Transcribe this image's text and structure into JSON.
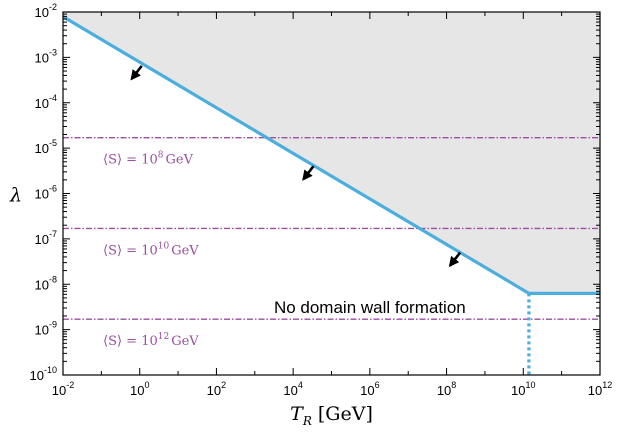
{
  "chart_data": {
    "type": "line",
    "xscale": "log",
    "yscale": "log",
    "xlim": [
      0.01,
      1000000000000.0
    ],
    "ylim": [
      1e-10,
      0.01
    ],
    "xlabel": {
      "main": "T",
      "sub": "R",
      "tail": " [GeV]"
    },
    "ylabel": "λ",
    "x_ticks": [
      {
        "base": "10",
        "exp": "-2",
        "value": 0.01
      },
      {
        "base": "10",
        "exp": "0",
        "value": 1
      },
      {
        "base": "10",
        "exp": "2",
        "value": 100
      },
      {
        "base": "10",
        "exp": "4",
        "value": 10000
      },
      {
        "base": "10",
        "exp": "6",
        "value": 1000000
      },
      {
        "base": "10",
        "exp": "8",
        "value": 100000000
      },
      {
        "base": "10",
        "exp": "10",
        "value": 10000000000
      },
      {
        "base": "10",
        "exp": "12",
        "value": 1000000000000
      }
    ],
    "y_ticks": [
      {
        "base": "10",
        "exp": "-10",
        "value": 1e-10
      },
      {
        "base": "10",
        "exp": "-9",
        "value": 1e-09
      },
      {
        "base": "10",
        "exp": "-8",
        "value": 1e-08
      },
      {
        "base": "10",
        "exp": "-7",
        "value": 1e-07
      },
      {
        "base": "10",
        "exp": "-6",
        "value": 1e-06
      },
      {
        "base": "10",
        "exp": "-5",
        "value": 1e-05
      },
      {
        "base": "10",
        "exp": "-4",
        "value": 0.0001
      },
      {
        "base": "10",
        "exp": "-3",
        "value": 0.001
      },
      {
        "base": "10",
        "exp": "-2",
        "value": 0.01
      }
    ],
    "series": [
      {
        "style": "solid",
        "color": "#4baedd",
        "points": [
          {
            "x": 0.01,
            "y": 0.0079
          },
          {
            "x": 14000000000.0,
            "y": 6.3e-09
          },
          {
            "x": 1000000000000.0,
            "y": 6.3e-09
          }
        ]
      },
      {
        "style": "dotted",
        "color": "#4baedd",
        "points": [
          {
            "x": 14000000000.0,
            "y": 6.3e-09
          },
          {
            "x": 14000000000.0,
            "y": 1e-10
          }
        ]
      }
    ],
    "shaded_region": {
      "color": "#e6e6e6",
      "bounded_by": "solid line from above"
    },
    "reference_lines": [
      {
        "y": 1.7e-05,
        "label_prefix": "⟨S⟩ = 10",
        "label_exp": "8",
        "label_unit": "GeV",
        "color": "#9a4fa0",
        "style": "dash-dot"
      },
      {
        "y": 1.7e-07,
        "label_prefix": "⟨S⟩ = 10",
        "label_exp": "10",
        "label_unit": "GeV",
        "color": "#9a4fa0",
        "style": "dash-dot"
      },
      {
        "y": 1.7e-09,
        "label_prefix": "⟨S⟩ = 10",
        "label_exp": "12",
        "label_unit": "GeV",
        "color": "#9a4fa0",
        "style": "dash-dot"
      }
    ],
    "arrows": [
      {
        "x": 1.0,
        "y": 0.00065
      },
      {
        "x": 30000.0,
        "y": 4e-06
      },
      {
        "x": 200000000.0,
        "y": 5e-08
      }
    ],
    "annotations": [
      {
        "text": "No domain wall formation",
        "x": 1000000.0,
        "y": 2.3e-09
      }
    ],
    "grid": false
  }
}
